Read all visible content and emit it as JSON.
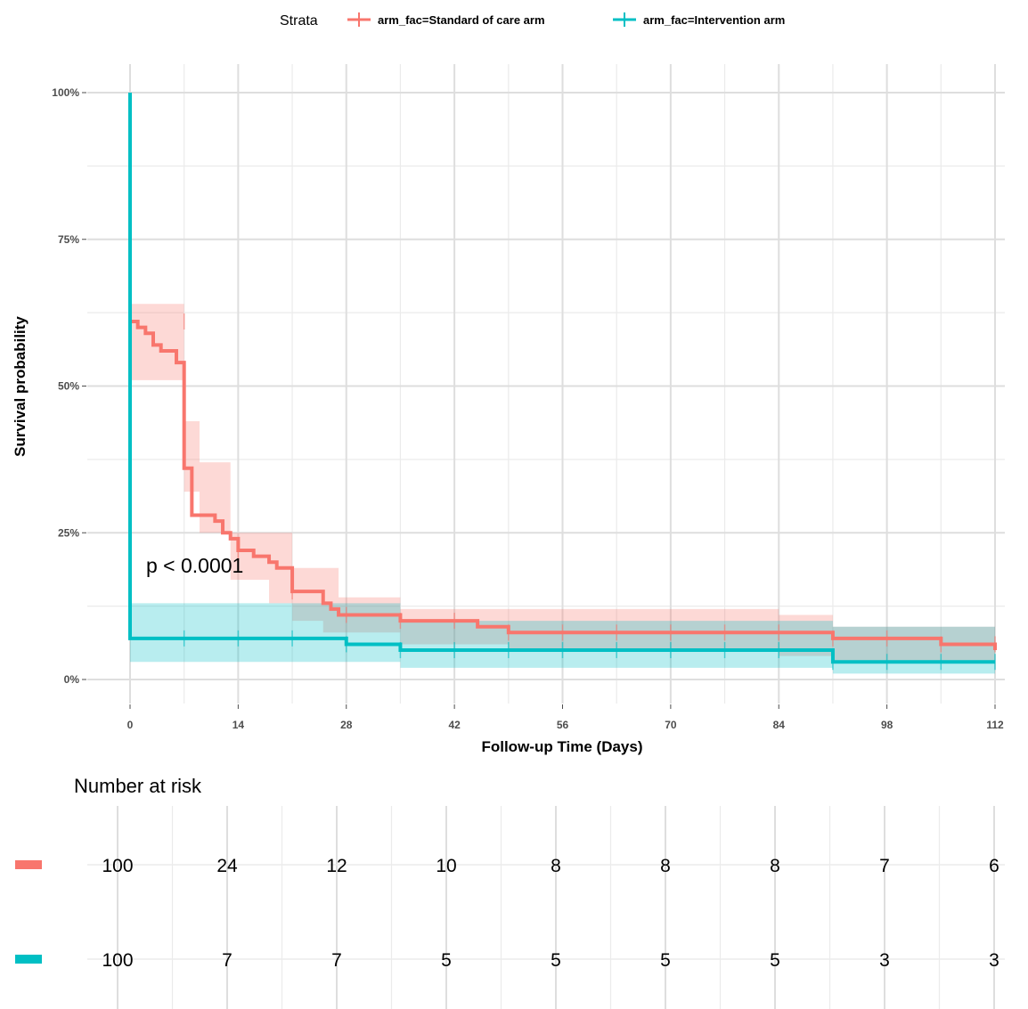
{
  "chart_data": {
    "type": "line",
    "subtype": "kaplan-meier",
    "xlabel": "Follow-up Time (Days)",
    "ylabel": "Survival probability",
    "xlim": [
      0,
      112
    ],
    "ylim": [
      0,
      1
    ],
    "x_ticks": [
      "0",
      "14",
      "28",
      "42",
      "56",
      "70",
      "84",
      "98",
      "112"
    ],
    "x_tick_values": [
      0,
      14,
      28,
      42,
      56,
      70,
      84,
      98,
      112
    ],
    "y_ticks": [
      "0%",
      "25%",
      "50%",
      "75%",
      "100%"
    ],
    "y_tick_values": [
      0,
      0.25,
      0.5,
      0.75,
      1.0
    ],
    "grid": true,
    "legend": {
      "title": "Strata",
      "position": "top",
      "entries": [
        "arm_fac=Standard of care arm",
        "arm_fac=Intervention arm"
      ]
    },
    "annotation": "p < 0.0001",
    "series": [
      {
        "name": "arm_fac=Standard of care arm",
        "color": "#F8766D",
        "steps": [
          [
            0,
            1.0
          ],
          [
            0,
            0.61
          ],
          [
            1,
            0.6
          ],
          [
            2,
            0.59
          ],
          [
            3,
            0.57
          ],
          [
            4,
            0.56
          ],
          [
            6,
            0.54
          ],
          [
            7,
            0.36
          ],
          [
            8,
            0.28
          ],
          [
            11,
            0.27
          ],
          [
            12,
            0.25
          ],
          [
            13,
            0.24
          ],
          [
            14,
            0.22
          ],
          [
            16,
            0.21
          ],
          [
            18,
            0.2
          ],
          [
            19,
            0.19
          ],
          [
            21,
            0.15
          ],
          [
            25,
            0.13
          ],
          [
            26,
            0.12
          ],
          [
            27,
            0.11
          ],
          [
            35,
            0.1
          ],
          [
            45,
            0.09
          ],
          [
            49,
            0.08
          ],
          [
            91,
            0.07
          ],
          [
            105,
            0.06
          ],
          [
            112,
            0.05
          ]
        ],
        "ci_upper": [
          [
            0,
            0.64
          ],
          [
            7,
            0.44
          ],
          [
            9,
            0.37
          ],
          [
            13,
            0.25
          ],
          [
            21,
            0.19
          ],
          [
            27,
            0.14
          ],
          [
            35,
            0.12
          ],
          [
            49,
            0.12
          ],
          [
            84,
            0.11
          ],
          [
            91,
            0.09
          ],
          [
            112,
            0.09
          ]
        ],
        "ci_lower": [
          [
            0,
            0.51
          ],
          [
            7,
            0.32
          ],
          [
            9,
            0.25
          ],
          [
            13,
            0.17
          ],
          [
            18,
            0.13
          ],
          [
            21,
            0.1
          ],
          [
            25,
            0.08
          ],
          [
            35,
            0.06
          ],
          [
            49,
            0.05
          ],
          [
            84,
            0.04
          ],
          [
            91,
            0.03
          ],
          [
            112,
            0.03
          ]
        ],
        "censors": [
          [
            7,
            0.61
          ],
          [
            14,
            0.22
          ],
          [
            21,
            0.15
          ],
          [
            28,
            0.11
          ],
          [
            35,
            0.1
          ],
          [
            42,
            0.1
          ],
          [
            49,
            0.08
          ],
          [
            56,
            0.08
          ],
          [
            63,
            0.08
          ],
          [
            70,
            0.08
          ],
          [
            77,
            0.08
          ],
          [
            84,
            0.08
          ],
          [
            91,
            0.07
          ],
          [
            98,
            0.07
          ],
          [
            105,
            0.06
          ],
          [
            112,
            0.06
          ]
        ]
      },
      {
        "name": "arm_fac=Intervention arm",
        "color": "#00BFC4",
        "steps": [
          [
            0,
            1.0
          ],
          [
            0,
            0.07
          ],
          [
            28,
            0.06
          ],
          [
            35,
            0.05
          ],
          [
            84,
            0.05
          ],
          [
            91,
            0.03
          ],
          [
            112,
            0.03
          ]
        ],
        "ci_upper": [
          [
            0,
            0.13
          ],
          [
            28,
            0.13
          ],
          [
            35,
            0.1
          ],
          [
            84,
            0.1
          ],
          [
            91,
            0.09
          ],
          [
            112,
            0.09
          ]
        ],
        "ci_lower": [
          [
            0,
            0.03
          ],
          [
            28,
            0.03
          ],
          [
            35,
            0.02
          ],
          [
            84,
            0.02
          ],
          [
            91,
            0.01
          ],
          [
            112,
            0.01
          ]
        ],
        "censors": [
          [
            7,
            0.07
          ],
          [
            14,
            0.07
          ],
          [
            21,
            0.07
          ],
          [
            28,
            0.06
          ],
          [
            35,
            0.05
          ],
          [
            42,
            0.05
          ],
          [
            49,
            0.05
          ],
          [
            56,
            0.05
          ],
          [
            63,
            0.05
          ],
          [
            70,
            0.05
          ],
          [
            77,
            0.05
          ],
          [
            84,
            0.05
          ],
          [
            91,
            0.03
          ],
          [
            98,
            0.03
          ],
          [
            105,
            0.03
          ],
          [
            112,
            0.03
          ]
        ]
      }
    ],
    "risk_table": {
      "title": "Number at risk",
      "times": [
        0,
        14,
        28,
        42,
        56,
        70,
        84,
        98,
        112
      ],
      "rows": [
        {
          "name": "arm_fac=Standard of care arm",
          "color": "#F8766D",
          "values": [
            "100",
            "24",
            "12",
            "10",
            "8",
            "8",
            "8",
            "7",
            "6"
          ]
        },
        {
          "name": "arm_fac=Intervention arm",
          "color": "#00BFC4",
          "values": [
            "100",
            "7",
            "7",
            "5",
            "5",
            "5",
            "5",
            "3",
            "3"
          ]
        }
      ]
    }
  }
}
